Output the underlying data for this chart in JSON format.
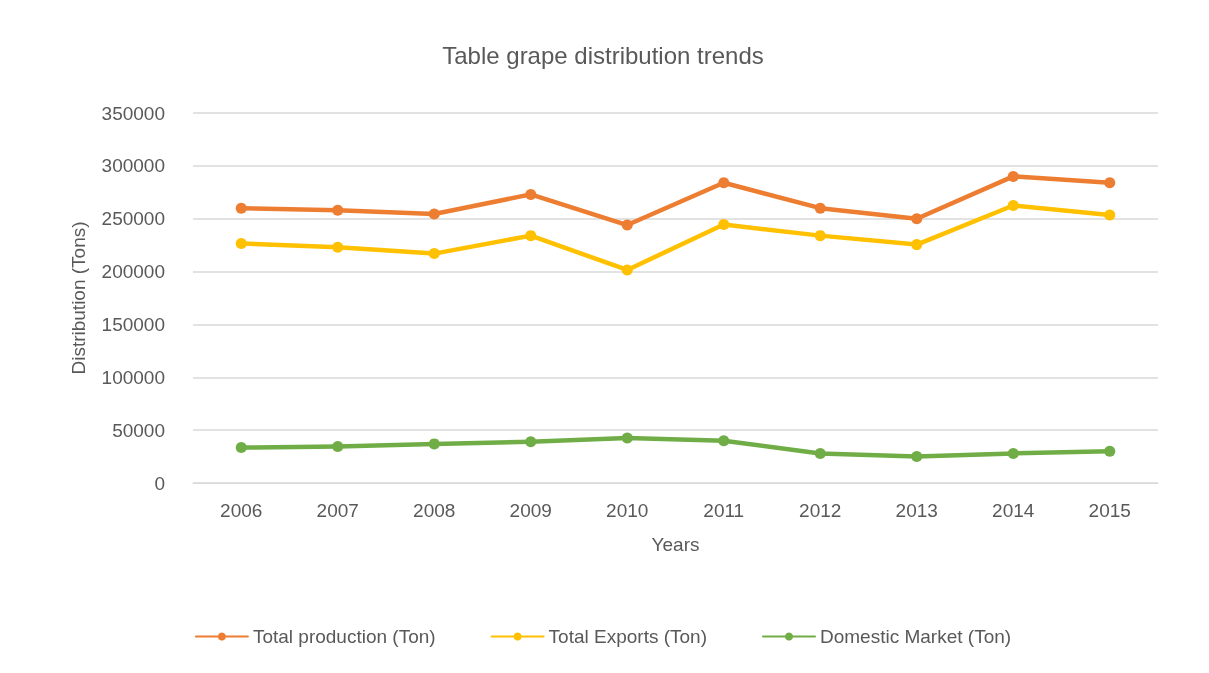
{
  "chart_data": {
    "type": "line",
    "title": "Table grape distribution trends",
    "xlabel": "Years",
    "ylabel": "Distribution (Tons)",
    "categories": [
      "2006",
      "2007",
      "2008",
      "2009",
      "2010",
      "2011",
      "2012",
      "2013",
      "2014",
      "2015"
    ],
    "series": [
      {
        "name": "Total production (Ton)",
        "color": "#ed7d31",
        "values": [
          260000,
          258000,
          254500,
          273000,
          244000,
          284000,
          260000,
          250000,
          290000,
          284000
        ]
      },
      {
        "name": "Total Exports (Ton)",
        "color": "#ffc000",
        "values": [
          226500,
          223000,
          217000,
          234000,
          201500,
          244500,
          234000,
          225500,
          262500,
          253500
        ]
      },
      {
        "name": "Domestic Market (Ton)",
        "color": "#70ad47",
        "values": [
          33500,
          34500,
          37000,
          39000,
          42500,
          40000,
          28000,
          25000,
          28000,
          30000
        ]
      }
    ],
    "ylim": [
      0,
      350000
    ],
    "yticks": [
      0,
      50000,
      100000,
      150000,
      200000,
      250000,
      300000,
      350000
    ],
    "grid": "y",
    "legend": "bottom",
    "marker": "circle",
    "line_style": "solid"
  }
}
